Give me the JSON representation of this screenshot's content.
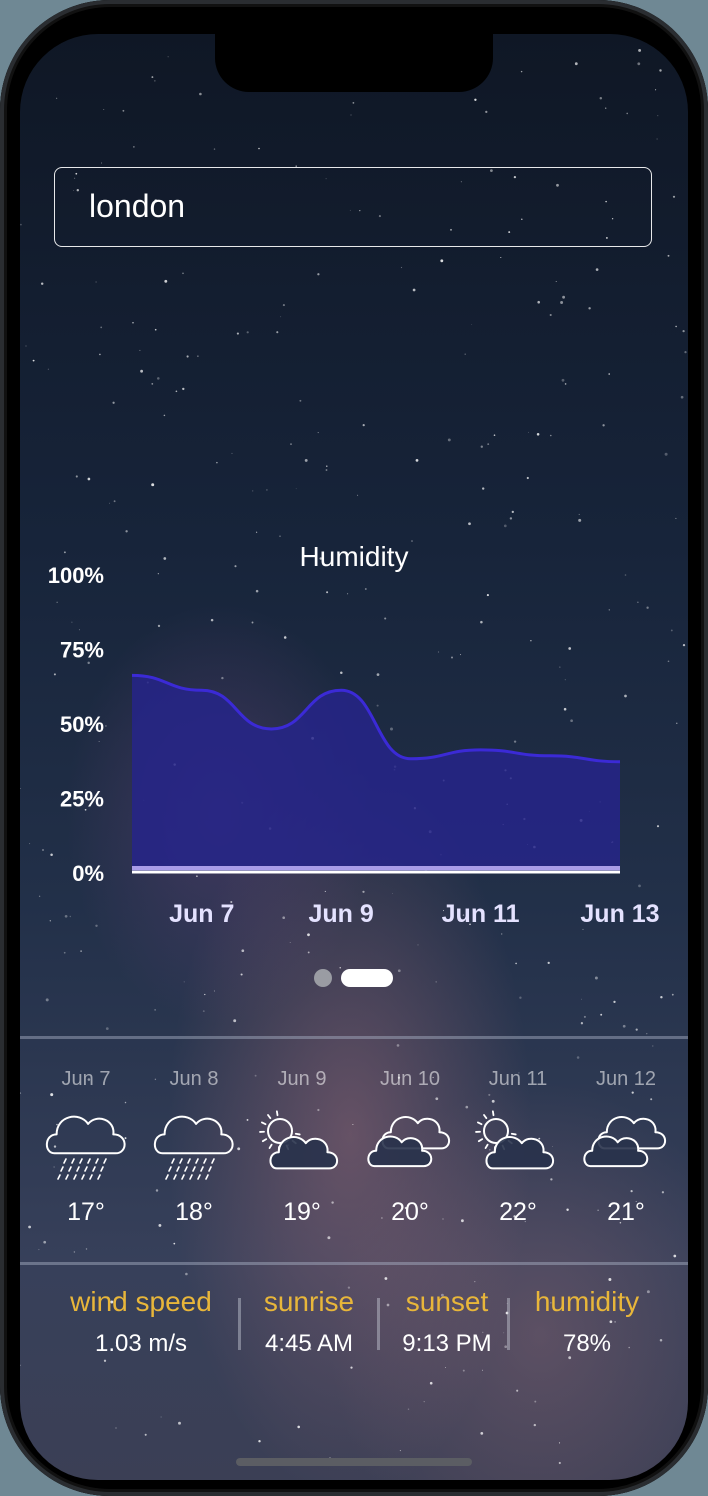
{
  "search": {
    "value": "london"
  },
  "chart_data": {
    "type": "area",
    "title": "Humidity",
    "x": [
      "Jun 6",
      "Jun 7",
      "Jun 8",
      "Jun 9",
      "Jun 10",
      "Jun 11",
      "Jun 12",
      "Jun 13"
    ],
    "x_tick_labels": [
      "Jun 7",
      "Jun 9",
      "Jun 11",
      "Jun 13"
    ],
    "values": [
      66,
      61,
      48,
      61,
      38,
      41,
      39,
      37
    ],
    "ylim": [
      0,
      100
    ],
    "y_tick_labels": [
      "0%",
      "25%",
      "50%",
      "75%",
      "100%"
    ],
    "y_ticks": [
      0,
      25,
      50,
      75,
      100
    ],
    "xlabel": "",
    "ylabel": "",
    "grid": false,
    "fill_color": "#26258a",
    "line_color": "#3b2ad6",
    "baseline_color": "#ffffff"
  },
  "pager": {
    "pages": 2,
    "active": 2
  },
  "forecast": [
    {
      "date": "Jun 7",
      "icon": "rain-cloud-icon",
      "temp": "17°"
    },
    {
      "date": "Jun 8",
      "icon": "rain-cloud-icon",
      "temp": "18°"
    },
    {
      "date": "Jun 9",
      "icon": "partly-sunny-icon",
      "temp": "19°"
    },
    {
      "date": "Jun 10",
      "icon": "clouds-icon",
      "temp": "20°"
    },
    {
      "date": "Jun 11",
      "icon": "partly-sunny-icon",
      "temp": "22°"
    },
    {
      "date": "Jun 12",
      "icon": "clouds-icon",
      "temp": "21°"
    }
  ],
  "stats": [
    {
      "label": "wind speed",
      "value": "1.03 m/s"
    },
    {
      "label": "sunrise",
      "value": "4:45 AM"
    },
    {
      "label": "sunset",
      "value": "9:13 PM"
    },
    {
      "label": "humidity",
      "value": "78%"
    }
  ],
  "colors": {
    "stat_label": "#e8b63a",
    "text": "#ffffff"
  }
}
